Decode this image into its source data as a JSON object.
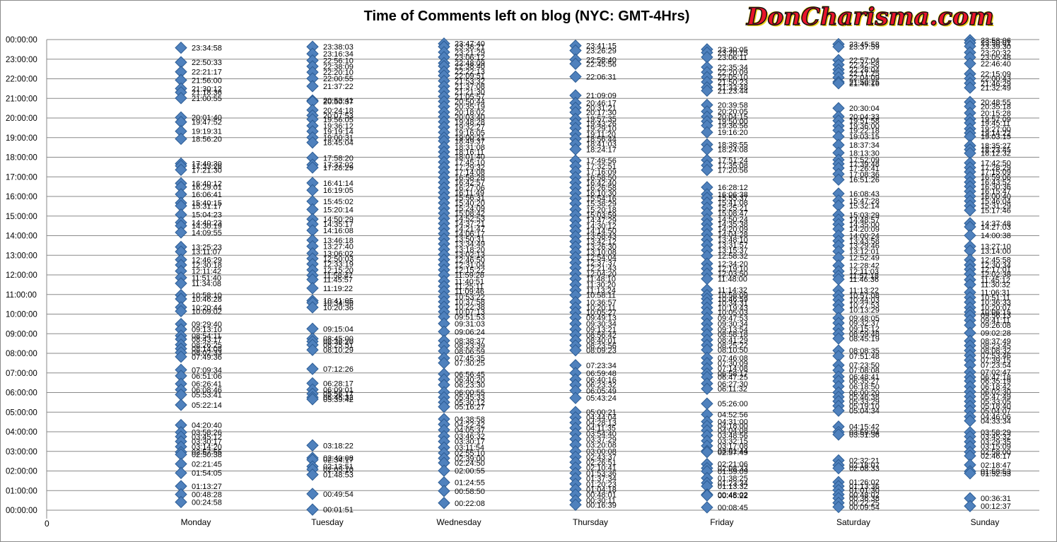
{
  "logo": {
    "text": "DonCharisma.com"
  },
  "chart_data": {
    "type": "scatter",
    "title": "Time of Comments left on blog (NYC: GMT-4Hrs)",
    "xlabel": "",
    "ylabel": "",
    "x_origin_label": "0",
    "categories": [
      "Monday",
      "Tuesday",
      "Wednesday",
      "Thursday",
      "Friday",
      "Saturday",
      "Sunday"
    ],
    "y_ticks": [
      "00:00:00",
      "01:00:00",
      "02:00:00",
      "03:00:00",
      "04:00:00",
      "05:00:00",
      "06:00:00",
      "07:00:00",
      "08:00:00",
      "09:00:00",
      "10:00:00",
      "11:00:00",
      "12:00:00",
      "13:00:00",
      "14:00:00",
      "15:00:00",
      "16:00:00",
      "17:00:00",
      "18:00:00",
      "19:00:00",
      "20:00:00",
      "21:00:00",
      "22:00:00",
      "23:00:00",
      "00:00:00"
    ],
    "ylim": [
      "00:00:00",
      "24:00:00"
    ],
    "grid": true,
    "legend": "none",
    "marker": {
      "shape": "diamond",
      "color": "#4f81bd",
      "edge_color": "#2c5c94"
    },
    "series": [
      {
        "category": "Monday",
        "points": [
          "23:34:58",
          "22:50:33",
          "22:21:17",
          "21:56:00",
          "21:30:12",
          "21:18:36",
          "21:00:55",
          "20:01:40",
          "19:47:52",
          "19:19:31",
          "18:56:20",
          "17:40:30",
          "17:33:26",
          "17:21:30",
          "16:40:12",
          "16:29:01",
          "16:06:41",
          "15:40:15",
          "15:31:17",
          "15:04:23",
          "14:40:23",
          "14:30:19",
          "14:09:55",
          "13:25:23",
          "13:11:07",
          "12:46:29",
          "12:30:18",
          "12:11:42",
          "11:51:40",
          "11:34:08",
          "10:58:10",
          "10:46:28",
          "10:20:44",
          "10:09:02",
          "09:29:40",
          "09:13:10",
          "08:54:11",
          "08:43:17",
          "08:26:25",
          "08:14:08",
          "08:02:33",
          "07:49:36",
          "07:09:34",
          "06:51:06",
          "06:26:41",
          "06:08:46",
          "05:53:41",
          "05:22:14",
          "04:20:40",
          "03:58:26",
          "03:45:12",
          "03:30:17",
          "03:14:20",
          "02:57:55",
          "02:50:38",
          "02:21:45",
          "01:54:05",
          "01:13:27",
          "00:48:28",
          "00:24:58"
        ]
      },
      {
        "category": "Tuesday",
        "points": [
          "23:38:03",
          "23:16:34",
          "22:56:10",
          "22:38:09",
          "22:20:10",
          "22:00:55",
          "21:37:22",
          "20:53:41",
          "20:50:37",
          "20:24:18",
          "20:07:53",
          "19:56:05",
          "19:36:12",
          "19:19:14",
          "19:00:31",
          "18:45:04",
          "17:58:20",
          "17:37:02",
          "17:28:29",
          "16:41:14",
          "16:19:05",
          "15:45:02",
          "15:20:14",
          "14:50:29",
          "14:35:17",
          "14:16:08",
          "13:46:18",
          "13:27:40",
          "13:06:02",
          "12:50:03",
          "12:33:19",
          "12:15:20",
          "11:58:47",
          "11:45:57",
          "11:19:22",
          "10:41:05",
          "10:34:56",
          "10:20:36",
          "09:15:04",
          "08:45:00",
          "08:36:20",
          "08:25:51",
          "08:10:29",
          "07:12:26",
          "06:28:17",
          "06:09:01",
          "05:56:17",
          "05:45:32",
          "05:39:42",
          "03:18:22",
          "02:40:08",
          "02:34:17",
          "02:13:51",
          "02:05:10",
          "01:48:53",
          "00:49:54",
          "00:01:51"
        ]
      },
      {
        "category": "Wednesday",
        "points": [
          "23:47:40",
          "23:38:21",
          "23:21:29",
          "23:06:12",
          "22:48:09",
          "22:38:40",
          "22:22:13",
          "22:09:51",
          "21:53:32",
          "21:37:08",
          "21:21:30",
          "21:05:57",
          "20:50:44",
          "20:35:19",
          "20:18:02",
          "20:03:40",
          "19:48:28",
          "19:32:27",
          "19:16:05",
          "19:00:21",
          "18:49:37",
          "18:31:08",
          "18:16:11",
          "18:01:40",
          "17:45:10",
          "17:29:32",
          "17:14:08",
          "16:58:28",
          "16:42:57",
          "16:27:06",
          "16:11:49",
          "15:56:31",
          "15:40:20",
          "15:24:09",
          "15:08:42",
          "14:52:53",
          "14:37:21",
          "14:21:47",
          "14:06:17",
          "13:50:31",
          "13:34:49",
          "13:18:20",
          "13:02:13",
          "12:46:50",
          "12:31:04",
          "12:15:22",
          "11:59:28",
          "11:40:51",
          "11:25:11",
          "11:09:46",
          "10:53:22",
          "10:37:58",
          "10:22:38",
          "10:07:13",
          "09:51:53",
          "09:31:03",
          "09:06:24",
          "08:38:37",
          "08:23:39",
          "08:06:59",
          "07:45:35",
          "07:30:25",
          "06:56:45",
          "06:40:20",
          "06:23:30",
          "06:00:55",
          "05:45:33",
          "05:30:12",
          "05:16:27",
          "04:38:58",
          "04:22:42",
          "04:05:37",
          "03:46:32",
          "03:30:17",
          "03:11:54",
          "02:55:10",
          "02:39:00",
          "02:24:50",
          "02:00:55",
          "01:24:55",
          "00:58:50",
          "00:22:08"
        ]
      },
      {
        "category": "Thursday",
        "points": [
          "23:41:15",
          "23:26:29",
          "22:58:40",
          "22:45:56",
          "22:06:31",
          "21:09:09",
          "20:46:17",
          "20:31:21",
          "20:17:30",
          "19:57:35",
          "19:43:26",
          "19:29:10",
          "19:11:20",
          "18:56:44",
          "18:41:03",
          "18:24:17",
          "17:49:56",
          "17:32:51",
          "17:16:09",
          "16:58:50",
          "16:42:40",
          "16:26:58",
          "16:10:30",
          "15:54:16",
          "15:38:29",
          "15:20:18",
          "15:03:59",
          "14:47:29",
          "14:30:12",
          "14:14:50",
          "13:58:43",
          "13:42:12",
          "13:26:30",
          "13:10:08",
          "12:54:04",
          "12:37:37",
          "12:21:43",
          "12:04:20",
          "11:48:10",
          "11:30:20",
          "11:13:24",
          "10:58:11",
          "10:36:57",
          "10:20:11",
          "10:05:27",
          "09:49:13",
          "09:30:34",
          "09:13:21",
          "08:56:42",
          "08:40:01",
          "08:23:56",
          "08:09:23",
          "07:23:34",
          "06:59:48",
          "06:40:16",
          "06:23:32",
          "06:05:49",
          "05:43:24",
          "05:00:21",
          "04:44:04",
          "04:28:13",
          "04:11:35",
          "03:54:40",
          "03:37:29",
          "03:20:08",
          "03:00:08",
          "02:43:37",
          "02:26:51",
          "02:10:41",
          "01:53:36",
          "01:37:34",
          "01:20:23",
          "01:04:18",
          "00:48:01",
          "00:30:11",
          "00:16:39"
        ]
      },
      {
        "category": "Friday",
        "points": [
          "23:30:05",
          "23:20:15",
          "23:06:11",
          "22:35:34",
          "22:20:09",
          "22:05:10",
          "21:50:23",
          "21:33:48",
          "21:23:44",
          "20:39:58",
          "20:20:05",
          "20:04:15",
          "19:50:00",
          "19:36:56",
          "19:16:20",
          "18:38:55",
          "18:24:08",
          "17:51:24",
          "17:35:08",
          "17:20:56",
          "16:28:12",
          "16:06:38",
          "15:55:37",
          "15:41:08",
          "15:25:21",
          "15:08:47",
          "14:50:24",
          "14:35:38",
          "14:20:09",
          "14:04:28",
          "13:48:10",
          "13:31:57",
          "13:15:37",
          "12:58:32",
          "12:34:20",
          "12:19:10",
          "12:03:50",
          "11:48:00",
          "11:14:32",
          "10:58:09",
          "10:46:59",
          "10:34:31",
          "10:19:43",
          "10:05:03",
          "09:47:53",
          "09:30:34",
          "09:13:54",
          "08:58:18",
          "08:41:29",
          "08:25:22",
          "08:10:50",
          "07:46:08",
          "07:30:09",
          "07:14:08",
          "06:58:17",
          "06:47:25",
          "06:27:30",
          "06:11:32",
          "05:26:00",
          "04:52:56",
          "04:31:00",
          "04:18:00",
          "04:04:08",
          "03:48:56",
          "03:32:15",
          "03:17:08",
          "03:01:44",
          "02:57:49",
          "02:21:06",
          "02:08:33",
          "01:59:09",
          "01:38:25",
          "01:23:34",
          "01:13:32",
          "00:48:02",
          "00:45:22",
          "00:08:45"
        ]
      },
      {
        "category": "Saturday",
        "points": [
          "23:45:58",
          "23:37:59",
          "22:57:04",
          "22:42:58",
          "22:28:04",
          "22:17:25",
          "22:04:09",
          "21:50:25",
          "21:46:16",
          "20:30:04",
          "20:04:33",
          "19:51:58",
          "19:36:00",
          "19:22:18",
          "19:03:15",
          "18:37:34",
          "18:13:30",
          "17:52:09",
          "17:39:48",
          "17:26:41",
          "17:08:36",
          "16:51:26",
          "16:08:43",
          "15:47:28",
          "15:32:14",
          "15:03:29",
          "14:48:57",
          "14:35:00",
          "14:20:09",
          "14:00:24",
          "13:43:58",
          "13:29:46",
          "13:12:01",
          "12:52:49",
          "12:28:42",
          "12:11:03",
          "11:57:18",
          "11:46:36",
          "11:13:22",
          "10:57:08",
          "10:44:03",
          "10:27:53",
          "10:13:29",
          "09:48:05",
          "09:32:37",
          "09:15:12",
          "08:59:48",
          "08:45:19",
          "08:08:35",
          "07:51:48",
          "07:23:50",
          "07:08:08",
          "06:48:41",
          "06:35:27",
          "06:18:50",
          "06:00:20",
          "05:46:38",
          "05:33:29",
          "05:19:10",
          "05:04:34",
          "04:15:42",
          "03:59:04",
          "03:51:36",
          "02:32:21",
          "02:18:07",
          "02:08:33",
          "01:26:02",
          "01:13:36",
          "01:01:30",
          "00:48:02",
          "00:36:38",
          "00:22:25",
          "00:09:54"
        ]
      },
      {
        "category": "Sunday",
        "points": [
          "23:58:06",
          "23:50:01",
          "23:39:30",
          "23:20:32",
          "23:05:48",
          "22:46:40",
          "22:15:09",
          "22:00:43",
          "21:46:29",
          "21:32:49",
          "20:48:55",
          "20:35:18",
          "20:15:28",
          "19:57:09",
          "19:45:11",
          "19:27:00",
          "19:14:22",
          "19:03:15",
          "18:35:27",
          "18:23:45",
          "18:12:32",
          "17:42:50",
          "17:28:29",
          "17:15:09",
          "16:59:06",
          "16:43:52",
          "16:30:36",
          "16:15:47",
          "16:00:40",
          "15:46:04",
          "15:31:29",
          "15:17:46",
          "14:37:48",
          "14:27:03",
          "14:00:38",
          "13:27:10",
          "13:14:00",
          "12:45:58",
          "12:30:34",
          "12:17:01",
          "12:02:38",
          "11:45:12",
          "11:30:32",
          "11:06:31",
          "10:51:11",
          "10:36:33",
          "10:20:07",
          "10:06:15",
          "09:56:13",
          "09:41:11",
          "09:26:08",
          "09:02:28",
          "08:37:49",
          "08:23:45",
          "08:08:32",
          "07:53:46",
          "07:39:15",
          "07:23:54",
          "07:02:47",
          "06:47:18",
          "06:35:19",
          "06:18:42",
          "06:02:30",
          "05:47:49",
          "05:33:05",
          "05:18:40",
          "05:04:07",
          "04:46:06",
          "04:33:34",
          "03:58:29",
          "03:45:32",
          "03:29:35",
          "03:15:09",
          "02:58:00",
          "02:46:17",
          "02:18:47",
          "01:58:53",
          "01:52:53",
          "00:36:31",
          "00:12:37"
        ]
      }
    ]
  }
}
